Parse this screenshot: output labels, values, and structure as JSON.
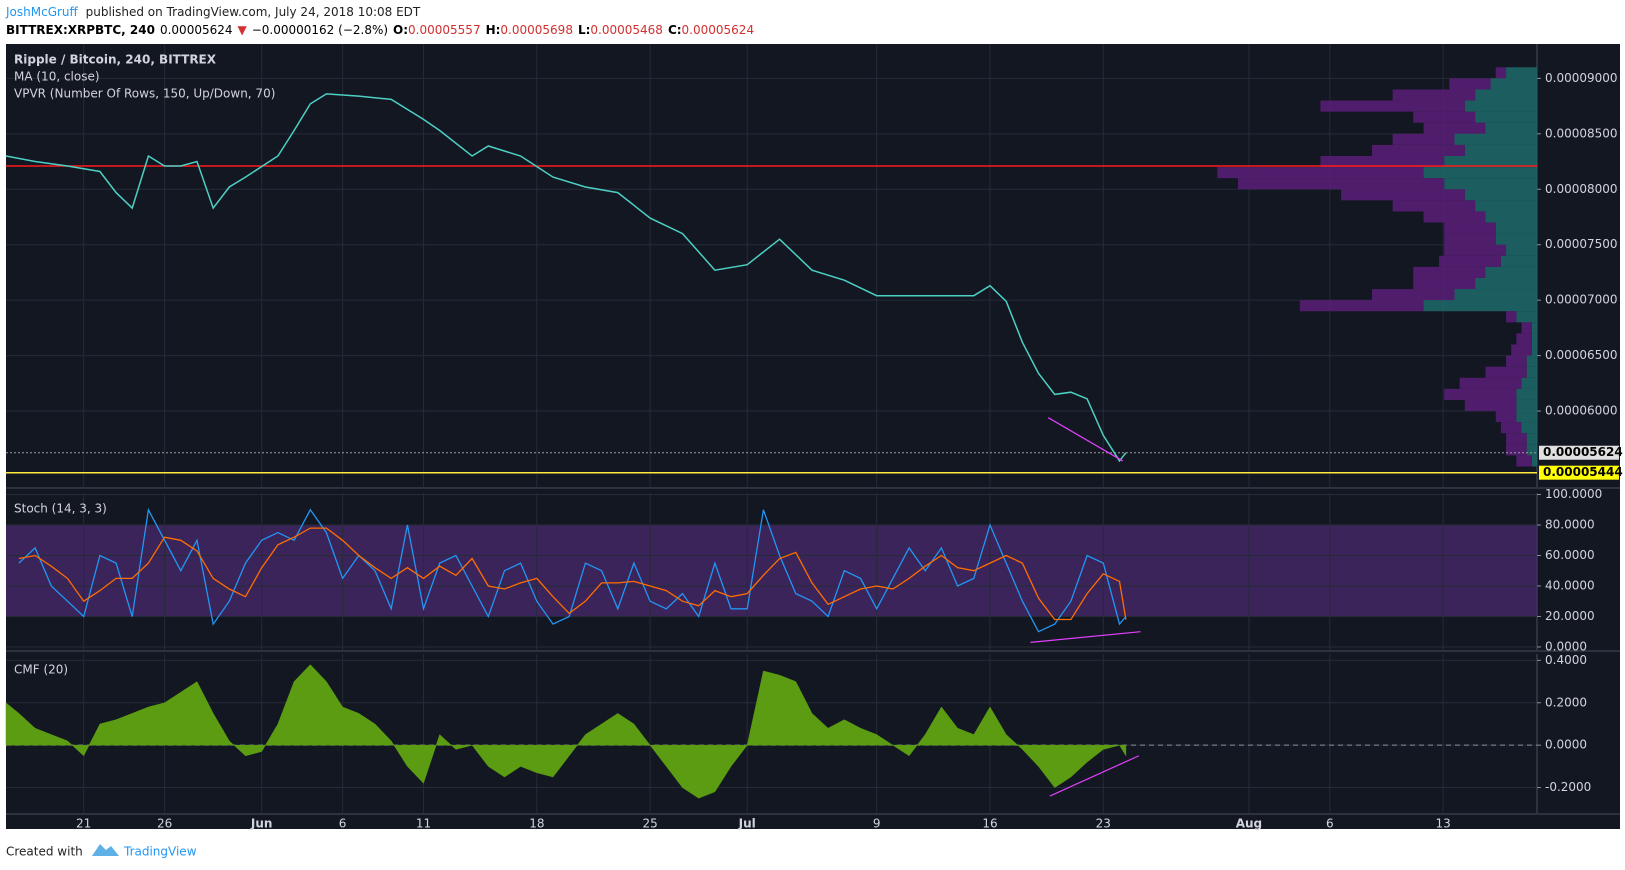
{
  "header": {
    "author": "JoshMcGruff",
    "published": "published on TradingView.com, July 24, 2018 10:08 EDT",
    "quote": [
      {
        "text": "BITTREX:XRPBTC, 240",
        "color": "#000000"
      },
      {
        "text": "0.00005624",
        "color": "#000000"
      },
      {
        "text": "▼",
        "color": "#d32f2f"
      },
      {
        "text": "−0.00000162 (−2.8%)",
        "color": "#000000"
      },
      {
        "text": "O:",
        "color": "#000000"
      },
      {
        "text": "0.00005557",
        "color": "#d32f2f"
      },
      {
        "text": "H:",
        "color": "#000000"
      },
      {
        "text": "0.00005698",
        "color": "#d32f2f"
      },
      {
        "text": "L:",
        "color": "#000000"
      },
      {
        "text": "0.00005468",
        "color": "#d32f2f"
      },
      {
        "text": "C:",
        "color": "#000000"
      },
      {
        "text": "0.00005624",
        "color": "#d32f2f"
      }
    ]
  },
  "footer": {
    "created": "Created with",
    "brand": "TradingView"
  },
  "chart_data": [
    {
      "type": "line",
      "title": "Ripple / Bitcoin, 240, BITTREX",
      "indicators": [
        "MA (10, close)",
        "VPVR (Number Of Rows, 150, Up/Down, 70)"
      ],
      "color": "#4dd0c4",
      "grid": true,
      "xlim": [
        -4.8,
        89.8
      ],
      "ylim": [
        5.315e-05,
        9.31e-05
      ],
      "yticks": [
        {
          "value": 6e-05,
          "label": "0.00006000"
        },
        {
          "value": 6.5e-05,
          "label": "0.00006500"
        },
        {
          "value": 7e-05,
          "label": "0.00007000"
        },
        {
          "value": 7.5e-05,
          "label": "0.00007500"
        },
        {
          "value": 8e-05,
          "label": "0.00008000"
        },
        {
          "value": 8.5e-05,
          "label": "0.00008500"
        },
        {
          "value": 9e-05,
          "label": "0.00009000"
        }
      ],
      "x": [
        -4.8,
        -3,
        -1,
        1,
        2,
        3,
        4,
        5,
        6,
        7,
        8,
        9,
        10,
        12,
        13,
        14,
        15,
        17,
        19,
        21,
        22,
        24,
        25,
        27,
        29,
        31,
        33,
        35,
        37,
        39,
        41,
        43,
        45,
        47,
        49,
        51,
        53,
        55,
        56,
        57,
        58,
        59,
        60,
        61,
        62,
        63,
        64,
        64.4
      ],
      "values": [
        8.3e-05,
        8.25e-05,
        8.21e-05,
        8.16e-05,
        7.97e-05,
        7.83e-05,
        8.3e-05,
        8.21e-05,
        8.21e-05,
        8.25e-05,
        7.83e-05,
        8.02e-05,
        8.11e-05,
        8.3e-05,
        8.53e-05,
        8.77e-05,
        8.86e-05,
        8.84e-05,
        8.81e-05,
        8.63e-05,
        8.53e-05,
        8.3e-05,
        8.39e-05,
        8.3e-05,
        8.11e-05,
        8.02e-05,
        7.97e-05,
        7.74e-05,
        7.6e-05,
        7.27e-05,
        7.32e-05,
        7.55e-05,
        7.27e-05,
        7.18e-05,
        7.04e-05,
        7.04e-05,
        7.04e-05,
        7.04e-05,
        7.13e-05,
        6.99e-05,
        6.62e-05,
        6.34e-05,
        6.15e-05,
        6.17e-05,
        6.11e-05,
        5.78e-05,
        5.55e-05,
        5.624e-05
      ],
      "hlines": [
        {
          "value": 8.21e-05,
          "color": "#ff1a1a"
        },
        {
          "value": 5.444e-05,
          "color": "#ffeb3b"
        },
        {
          "value": 5.624e-05,
          "color": "#9e9e9e",
          "dash": true
        }
      ],
      "price_labels": [
        {
          "value": 5.624e-05,
          "label": "0.00005624",
          "bg": "#e0e0e0"
        },
        {
          "value": 5.444e-05,
          "label": "0.00005444",
          "bg": "#ffff00"
        }
      ],
      "trendlines": [
        {
          "x": [
            59.6,
            64.2
          ],
          "y": [
            5.94e-05,
            5.55e-05
          ],
          "color": "#e040fb"
        }
      ],
      "volume_profile": {
        "xlim": [
          0,
          320
        ],
        "up_color": "#1e6b6b",
        "down_color": "#5a1f78",
        "rows": [
          {
            "price": 9.05e-05,
            "up": 30,
            "down": 10
          },
          {
            "price": 8.95e-05,
            "up": 45,
            "down": 40
          },
          {
            "price": 8.85e-05,
            "up": 60,
            "down": 80
          },
          {
            "price": 8.75e-05,
            "up": 70,
            "down": 140
          },
          {
            "price": 8.65e-05,
            "up": 60,
            "down": 60
          },
          {
            "price": 8.55e-05,
            "up": 50,
            "down": 60
          },
          {
            "price": 8.45e-05,
            "up": 80,
            "down": 60
          },
          {
            "price": 8.35e-05,
            "up": 70,
            "down": 90
          },
          {
            "price": 8.25e-05,
            "up": 90,
            "down": 120
          },
          {
            "price": 8.15e-05,
            "up": 110,
            "down": 200
          },
          {
            "price": 8.05e-05,
            "up": 90,
            "down": 200
          },
          {
            "price": 7.95e-05,
            "up": 70,
            "down": 120
          },
          {
            "price": 7.85e-05,
            "up": 60,
            "down": 80
          },
          {
            "price": 7.75e-05,
            "up": 50,
            "down": 60
          },
          {
            "price": 7.65e-05,
            "up": 40,
            "down": 50
          },
          {
            "price": 7.55e-05,
            "up": 40,
            "down": 50
          },
          {
            "price": 7.45e-05,
            "up": 30,
            "down": 60
          },
          {
            "price": 7.35e-05,
            "up": 35,
            "down": 60
          },
          {
            "price": 7.25e-05,
            "up": 50,
            "down": 70
          },
          {
            "price": 7.15e-05,
            "up": 60,
            "down": 60
          },
          {
            "price": 7.05e-05,
            "up": 80,
            "down": 80
          },
          {
            "price": 6.95e-05,
            "up": 110,
            "down": 120
          },
          {
            "price": 6.85e-05,
            "up": 20,
            "down": 10
          },
          {
            "price": 6.75e-05,
            "up": 5,
            "down": 10
          },
          {
            "price": 6.65e-05,
            "up": 5,
            "down": 15
          },
          {
            "price": 6.55e-05,
            "up": 5,
            "down": 20
          },
          {
            "price": 6.45e-05,
            "up": 10,
            "down": 20
          },
          {
            "price": 6.35e-05,
            "up": 10,
            "down": 40
          },
          {
            "price": 6.25e-05,
            "up": 15,
            "down": 60
          },
          {
            "price": 6.15e-05,
            "up": 20,
            "down": 70
          },
          {
            "price": 6.05e-05,
            "up": 20,
            "down": 50
          },
          {
            "price": 5.95e-05,
            "up": 20,
            "down": 20
          },
          {
            "price": 5.85e-05,
            "up": 15,
            "down": 20
          },
          {
            "price": 5.75e-05,
            "up": 10,
            "down": 20
          },
          {
            "price": 5.65e-05,
            "up": 10,
            "down": 20
          },
          {
            "price": 5.55e-05,
            "up": 5,
            "down": 15
          }
        ]
      }
    },
    {
      "type": "line",
      "title": "Stoch (14, 3, 3)",
      "grid": true,
      "xlim": [
        -4.8,
        89.8
      ],
      "ylim": [
        -2,
        101
      ],
      "yticks": [
        {
          "value": 0,
          "label": "0.0000"
        },
        {
          "value": 20,
          "label": "20.0000"
        },
        {
          "value": 40,
          "label": "40.0000"
        },
        {
          "value": 60,
          "label": "60.0000"
        },
        {
          "value": 80,
          "label": "80.0000"
        },
        {
          "value": 100,
          "label": "100.0000"
        }
      ],
      "band": [
        20,
        80
      ],
      "band_color": "#4a2a6e",
      "x": [
        -4,
        -3,
        -2,
        -1,
        0,
        1,
        2,
        3,
        4,
        5,
        6,
        7,
        8,
        9,
        10,
        11,
        12,
        13,
        14,
        15,
        16,
        17,
        18,
        19,
        20,
        21,
        22,
        23,
        24,
        25,
        26,
        27,
        28,
        29,
        30,
        31,
        32,
        33,
        34,
        35,
        36,
        37,
        38,
        39,
        40,
        41,
        42,
        43,
        44,
        45,
        46,
        47,
        48,
        49,
        50,
        51,
        52,
        53,
        54,
        55,
        56,
        57,
        58,
        59,
        60,
        61,
        62,
        63,
        64,
        64.4
      ],
      "series": [
        {
          "color": "#2196f3",
          "values": [
            55,
            65,
            40,
            30,
            20,
            60,
            55,
            20,
            90,
            70,
            50,
            70,
            15,
            30,
            55,
            70,
            75,
            70,
            90,
            75,
            45,
            60,
            50,
            25,
            80,
            25,
            55,
            60,
            40,
            20,
            50,
            55,
            30,
            15,
            20,
            55,
            50,
            25,
            55,
            30,
            25,
            35,
            20,
            55,
            25,
            25,
            90,
            60,
            35,
            30,
            20,
            50,
            45,
            25,
            45,
            65,
            50,
            65,
            40,
            45,
            80,
            55,
            30,
            10,
            15,
            30,
            60,
            55,
            15,
            20
          ]
        },
        {
          "color": "#ff6d00",
          "values": [
            58,
            60,
            53,
            45,
            30,
            37,
            45,
            45,
            55,
            72,
            70,
            63,
            45,
            38,
            33,
            52,
            67,
            72,
            78,
            78,
            70,
            60,
            52,
            45,
            52,
            45,
            53,
            47,
            58,
            40,
            38,
            42,
            45,
            33,
            22,
            30,
            42,
            42,
            43,
            40,
            37,
            30,
            27,
            37,
            33,
            35,
            47,
            58,
            62,
            42,
            28,
            33,
            38,
            40,
            38,
            45,
            53,
            60,
            52,
            50,
            55,
            60,
            55,
            32,
            18,
            18,
            35,
            48,
            43,
            18
          ]
        }
      ],
      "trendlines": [
        {
          "x": [
            58.5,
            65.3
          ],
          "y": [
            3,
            10
          ],
          "color": "#e040fb"
        }
      ]
    },
    {
      "type": "area",
      "title": "CMF (20)",
      "color": "#5b9c13",
      "grid": true,
      "xlim": [
        -4.8,
        89.8
      ],
      "ylim": [
        -0.32,
        0.43
      ],
      "yticks": [
        {
          "value": -0.2,
          "label": "-0.2000"
        },
        {
          "value": 0,
          "label": "0.0000"
        },
        {
          "value": 0.2,
          "label": "0.2000"
        },
        {
          "value": 0.4,
          "label": "0.4000"
        }
      ],
      "xticks": [
        {
          "value": 0,
          "label": "21"
        },
        {
          "value": 5,
          "label": "26"
        },
        {
          "value": 11,
          "label": "Jun"
        },
        {
          "value": 16,
          "label": "6"
        },
        {
          "value": 21,
          "label": "11"
        },
        {
          "value": 28,
          "label": "18"
        },
        {
          "value": 35,
          "label": "25"
        },
        {
          "value": 41,
          "label": "Jul"
        },
        {
          "value": 49,
          "label": "9"
        },
        {
          "value": 56,
          "label": "16"
        },
        {
          "value": 63,
          "label": "23"
        },
        {
          "value": 72,
          "label": "Aug"
        },
        {
          "value": 77,
          "label": "6"
        },
        {
          "value": 84,
          "label": "13"
        }
      ],
      "x": [
        -4.8,
        -4,
        -3,
        -2,
        -1,
        0,
        1,
        2,
        3,
        4,
        5,
        6,
        7,
        8,
        9,
        10,
        11,
        12,
        13,
        14,
        15,
        16,
        17,
        18,
        19,
        20,
        21,
        22,
        23,
        24,
        25,
        26,
        27,
        28,
        29,
        30,
        31,
        32,
        33,
        34,
        35,
        36,
        37,
        38,
        39,
        40,
        41,
        42,
        43,
        44,
        45,
        46,
        47,
        48,
        49,
        50,
        51,
        52,
        53,
        54,
        55,
        56,
        57,
        58,
        59,
        60,
        61,
        62,
        63,
        64,
        64.4
      ],
      "values": [
        0.2,
        0.15,
        0.08,
        0.05,
        0.02,
        -0.05,
        0.1,
        0.12,
        0.15,
        0.18,
        0.2,
        0.25,
        0.3,
        0.15,
        0.02,
        -0.05,
        -0.03,
        0.1,
        0.3,
        0.38,
        0.3,
        0.18,
        0.15,
        0.1,
        0.02,
        -0.1,
        -0.18,
        0.05,
        -0.02,
        0,
        -0.1,
        -0.15,
        -0.1,
        -0.13,
        -0.15,
        -0.05,
        0.05,
        0.1,
        0.15,
        0.1,
        0,
        -0.1,
        -0.2,
        -0.25,
        -0.22,
        -0.1,
        0,
        0.35,
        0.33,
        0.3,
        0.15,
        0.08,
        0.12,
        0.08,
        0.05,
        0,
        -0.05,
        0.05,
        0.18,
        0.08,
        0.05,
        0.18,
        0.05,
        -0.02,
        -0.1,
        -0.2,
        -0.15,
        -0.08,
        -0.02,
        0,
        -0.05
      ],
      "trendlines": [
        {
          "x": [
            59.7,
            65.2
          ],
          "y": [
            -0.24,
            -0.05
          ],
          "color": "#e040fb"
        }
      ]
    }
  ]
}
